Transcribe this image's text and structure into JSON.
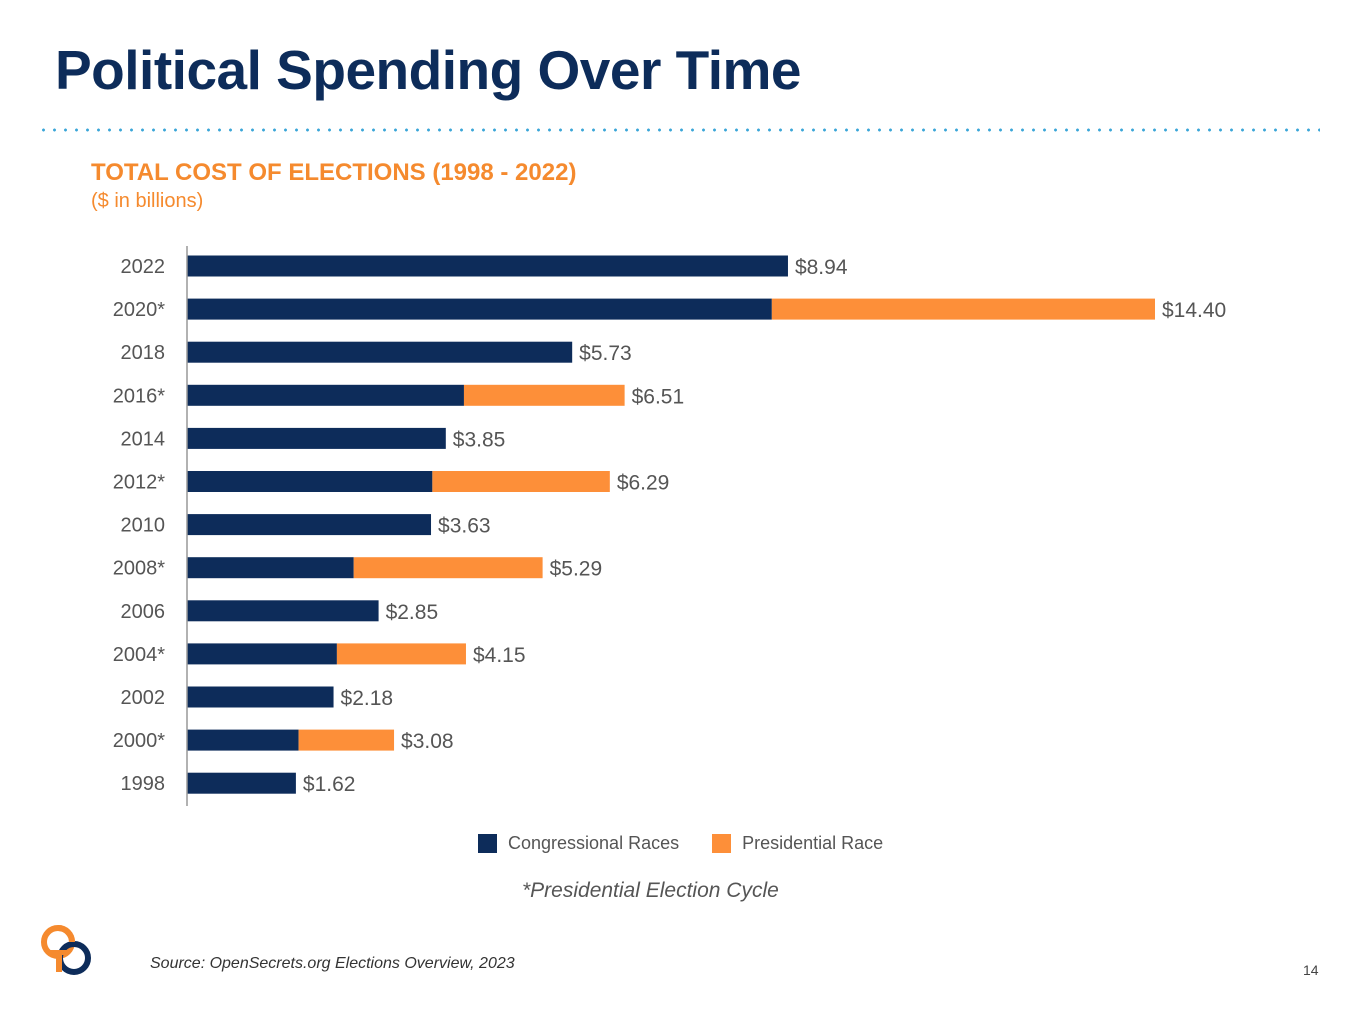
{
  "slide": {
    "title": "Political Spending Over Time",
    "source": "Source:  OpenSecrets.org Elections Overview, 2023",
    "footnote": "*Presidential Election Cycle",
    "page_number": "14"
  },
  "colors": {
    "title": "#0d2c5a",
    "accent": "#f58a2e",
    "congressional": "#0d2c5a",
    "presidential": "#fd8f39",
    "dotted_rule": "#3aa6d8"
  },
  "logo": {
    "icon": "interlocking-rings-logo-icon"
  },
  "chart_data": {
    "type": "bar",
    "orientation": "horizontal",
    "stacked": true,
    "title": "TOTAL COST OF ELECTIONS (1998 - 2022)",
    "subtitle": "($ in billions)",
    "categories": [
      "2022",
      "2020*",
      "2018",
      "2016*",
      "2014",
      "2012*",
      "2010",
      "2008*",
      "2006",
      "2004*",
      "2002",
      "2000*",
      "1998"
    ],
    "series": [
      {
        "name": "Congressional Races",
        "color": "#0d2c5a",
        "values": [
          8.94,
          8.7,
          5.73,
          4.12,
          3.85,
          3.65,
          3.63,
          2.48,
          2.85,
          2.23,
          2.18,
          1.66,
          1.62
        ]
      },
      {
        "name": "Presidential Race",
        "color": "#fd8f39",
        "values": [
          0,
          5.7,
          0,
          2.39,
          0,
          2.64,
          0,
          2.81,
          0,
          1.92,
          0,
          1.42,
          0
        ]
      }
    ],
    "totals": [
      8.94,
      14.4,
      5.73,
      6.51,
      3.85,
      6.29,
      3.63,
      5.29,
      2.85,
      4.15,
      2.18,
      3.08,
      1.62
    ],
    "data_labels": [
      "$8.94",
      "$14.40",
      "$5.73",
      "$6.51",
      "$3.85",
      "$6.29",
      "$3.63",
      "$5.29",
      "$2.85",
      "$4.15",
      "$2.18",
      "$3.08",
      "$1.62"
    ],
    "xlim": [
      0,
      15
    ],
    "grid": false,
    "legend": "bottom"
  }
}
